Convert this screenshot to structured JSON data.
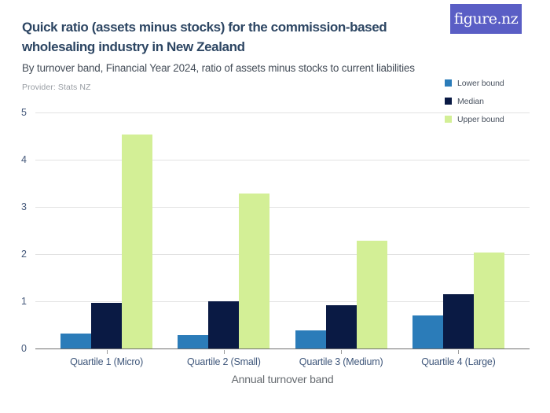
{
  "header": {
    "title": "Quick ratio (assets minus stocks) for the commission-based\nwholesaling industry in New Zealand",
    "subtitle": "By turnover band, Financial Year 2024, ratio of assets minus stocks to current liabilities",
    "provider": "Provider: Stats NZ"
  },
  "logo": {
    "text": "figure.nz",
    "background": "#5a5ec5"
  },
  "colors": {
    "lower_bound": "#2b7cb9",
    "median": "#0a1a44",
    "upper_bound": "#d3ef96",
    "gridline": "#e2e2e2",
    "axis_line": "#6f6f6f",
    "tick_label": "#44587a"
  },
  "chart_data": {
    "type": "bar",
    "categories": [
      "Quartile 1 (Micro)",
      "Quartile 2 (Small)",
      "Quartile 3 (Medium)",
      "Quartile 4 (Large)"
    ],
    "series": [
      {
        "name": "Lower bound",
        "color": "#2b7cb9",
        "values": [
          0.32,
          0.29,
          0.39,
          0.7
        ]
      },
      {
        "name": "Median",
        "color": "#0a1a44",
        "values": [
          0.96,
          1.0,
          0.91,
          1.15
        ]
      },
      {
        "name": "Upper bound",
        "color": "#d3ef96",
        "values": [
          4.54,
          3.29,
          2.28,
          2.03
        ]
      }
    ],
    "title": "Quick ratio (assets minus stocks) for the commission-based wholesaling industry in New Zealand",
    "xlabel": "Annual turnover band",
    "ylabel": "",
    "ylim": [
      0,
      5
    ],
    "yticks": [
      0,
      1,
      2,
      3,
      4,
      5
    ],
    "grid": true,
    "legend_position": "top-right"
  }
}
